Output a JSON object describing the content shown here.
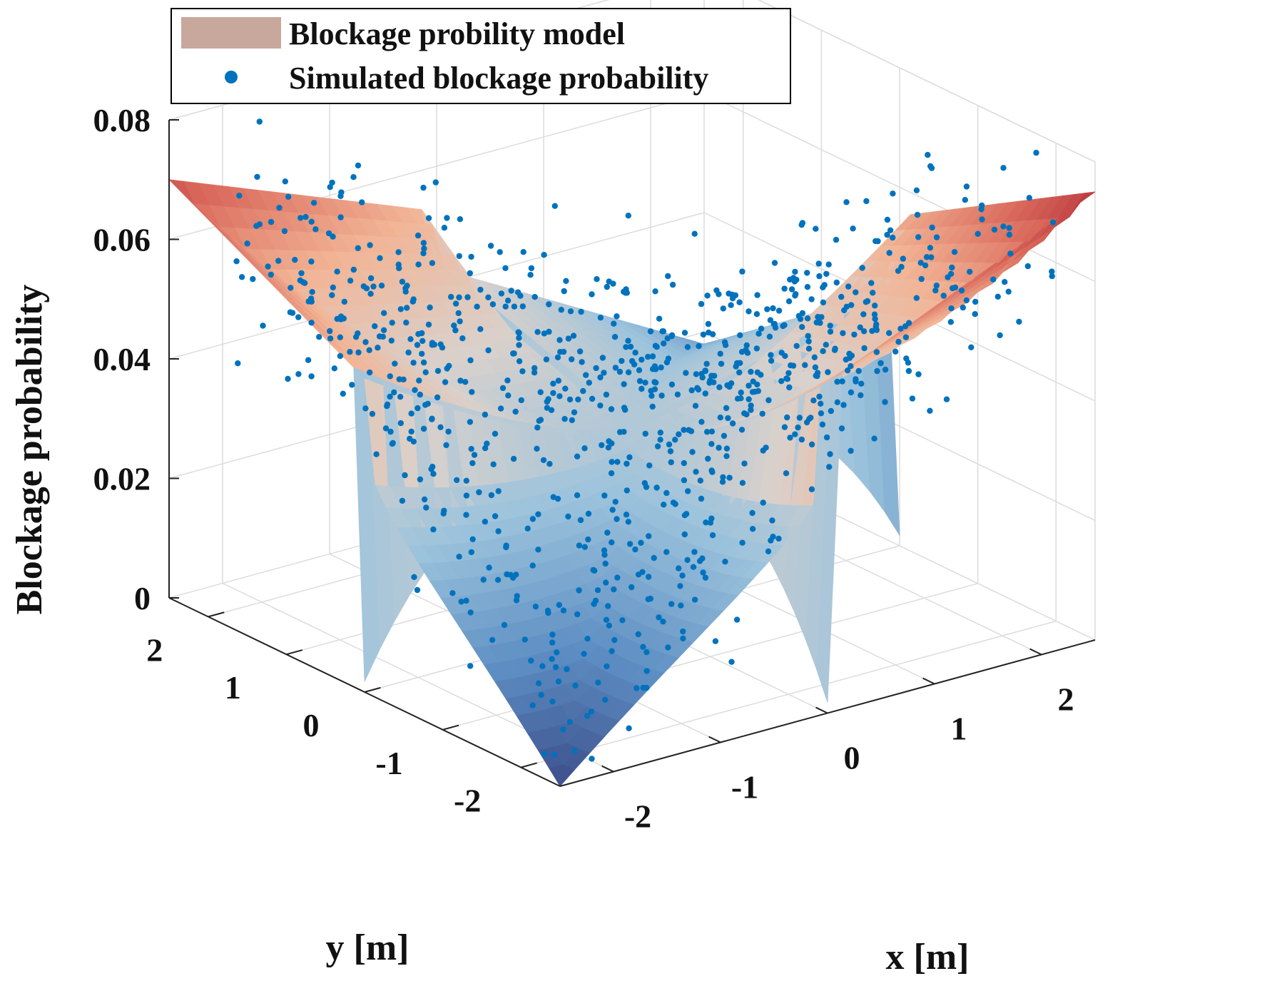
{
  "chart_data": {
    "type": "surface3d_with_scatter",
    "legend": [
      {
        "label": "Blockage probility model",
        "kind": "surface-swatch",
        "color": "#c8a79c"
      },
      {
        "label": "Simulated blockage probability",
        "kind": "marker",
        "color": "#0072bd"
      }
    ],
    "xlabel": "x [m]",
    "ylabel": "y [m]",
    "zlabel": "Blockage probability",
    "xlim": [
      -2.5,
      2.5
    ],
    "ylim": [
      -2.5,
      2.5
    ],
    "zlim": [
      0,
      0.08
    ],
    "x_ticks": [
      {
        "value": -2,
        "label": "-2"
      },
      {
        "value": -1,
        "label": "-1"
      },
      {
        "value": 0,
        "label": "0"
      },
      {
        "value": 1,
        "label": "1"
      },
      {
        "value": 2,
        "label": "2"
      }
    ],
    "y_ticks": [
      {
        "value": -2,
        "label": "-2"
      },
      {
        "value": -1,
        "label": "-1"
      },
      {
        "value": 0,
        "label": "0"
      },
      {
        "value": 1,
        "label": "1"
      },
      {
        "value": 2,
        "label": "2"
      }
    ],
    "z_ticks": [
      {
        "value": 0,
        "label": "0"
      },
      {
        "value": 0.02,
        "label": "0.02"
      },
      {
        "value": 0.04,
        "label": "0.04"
      },
      {
        "value": 0.06,
        "label": "0.06"
      },
      {
        "value": 0.08,
        "label": "0.08"
      }
    ],
    "surface": {
      "description": "saddle-shaped model surface, peaks near opposite corners and dips to ~0 near the other corners",
      "corner_values": {
        "xmin_ymin": 0.0,
        "xmax_ymax": 0.018,
        "xmin_ymax": 0.07,
        "xmax_ymin": 0.075
      },
      "center_value": 0.031
    },
    "simulated_points": {
      "count": 900,
      "description": "noisy samples scattered around the model surface"
    },
    "colormap": [
      "#3b4c8a",
      "#5e8fc4",
      "#9cc3dc",
      "#d9d1cc",
      "#f2b596",
      "#d9675a",
      "#a31a2c"
    ],
    "grid": true
  }
}
